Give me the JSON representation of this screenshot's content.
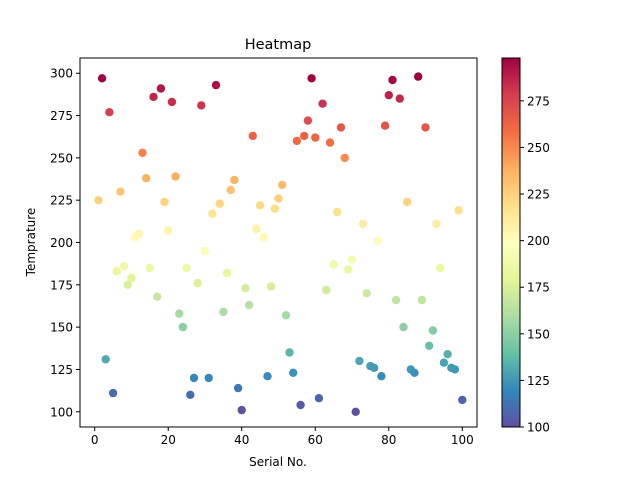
{
  "chart_data": {
    "type": "scatter",
    "title": "Heatmap",
    "xlabel": "Serial No.",
    "ylabel": "Temprature",
    "xlim": [
      -4,
      104
    ],
    "ylim": [
      91,
      309
    ],
    "xticks": [
      0,
      20,
      40,
      60,
      80,
      100
    ],
    "yticks": [
      100,
      125,
      150,
      175,
      200,
      225,
      250,
      275,
      300
    ],
    "colorbar": {
      "min": 100,
      "max": 298,
      "ticks": [
        100,
        125,
        150,
        175,
        200,
        225,
        250,
        275
      ],
      "colormap": "Spectral_r",
      "colors": [
        "#5e4fa2",
        "#3288bd",
        "#66c2a5",
        "#abdda4",
        "#e6f598",
        "#ffffbf",
        "#fee08b",
        "#fdae61",
        "#f46d43",
        "#d53e4f",
        "#9e0142"
      ]
    },
    "grid": false,
    "x": [
      1,
      2,
      3,
      4,
      5,
      6,
      7,
      8,
      9,
      10,
      11,
      12,
      13,
      14,
      15,
      16,
      17,
      18,
      19,
      20,
      21,
      22,
      23,
      24,
      25,
      26,
      27,
      28,
      29,
      30,
      31,
      32,
      33,
      34,
      35,
      36,
      37,
      38,
      39,
      40,
      41,
      42,
      43,
      44,
      45,
      46,
      47,
      48,
      49,
      50,
      51,
      52,
      53,
      54,
      55,
      56,
      57,
      58,
      59,
      60,
      61,
      62,
      63,
      64,
      65,
      66,
      67,
      68,
      69,
      70,
      71,
      72,
      73,
      74,
      75,
      76,
      77,
      78,
      79,
      80,
      81,
      82,
      83,
      84,
      85,
      86,
      87,
      88,
      89,
      90,
      91,
      92,
      93,
      94,
      95,
      96,
      97,
      98,
      99,
      100
    ],
    "y": [
      225,
      297,
      131,
      277,
      111,
      183,
      230,
      186,
      175,
      179,
      203,
      205,
      253,
      238,
      185,
      286,
      168,
      291,
      224,
      207,
      283,
      239,
      158,
      150,
      185,
      110,
      120,
      176,
      281,
      195,
      120,
      217,
      293,
      223,
      159,
      182,
      231,
      237,
      114,
      101,
      173,
      163,
      263,
      208,
      222,
      203,
      121,
      174,
      220,
      226,
      234,
      157,
      135,
      123,
      260,
      104,
      263,
      272,
      297,
      262,
      108,
      282,
      172,
      259,
      187,
      218,
      268,
      250,
      184,
      190,
      100,
      130,
      211,
      170,
      127,
      126,
      201,
      121,
      269,
      287,
      296,
      166,
      285,
      150,
      224,
      125,
      123,
      298,
      166,
      268,
      139,
      148,
      211,
      185,
      129,
      134,
      126,
      125,
      219,
      107
    ]
  }
}
